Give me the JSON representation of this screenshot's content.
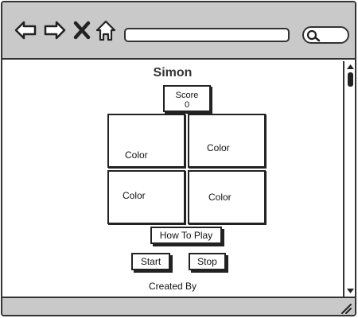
{
  "browser": {
    "address_value": "",
    "search_placeholder": ""
  },
  "page": {
    "title": "Simon",
    "score": {
      "label": "Score",
      "value": "0"
    },
    "color_buttons": [
      {
        "label": "Color"
      },
      {
        "label": "Color"
      },
      {
        "label": "Color"
      },
      {
        "label": "Color"
      }
    ],
    "how_to_play_label": "How To Play",
    "start_label": "Start",
    "stop_label": "Stop",
    "footer_text": "Created By"
  },
  "icons": {
    "back": "arrow-left-icon",
    "forward": "arrow-right-icon",
    "stop": "close-x-icon",
    "home": "home-icon",
    "search": "search-icon",
    "resize": "resize-grip-icon"
  },
  "colors": {
    "chrome": "#c9c9c9",
    "ink": "#222222",
    "canvas": "#ffffff"
  }
}
